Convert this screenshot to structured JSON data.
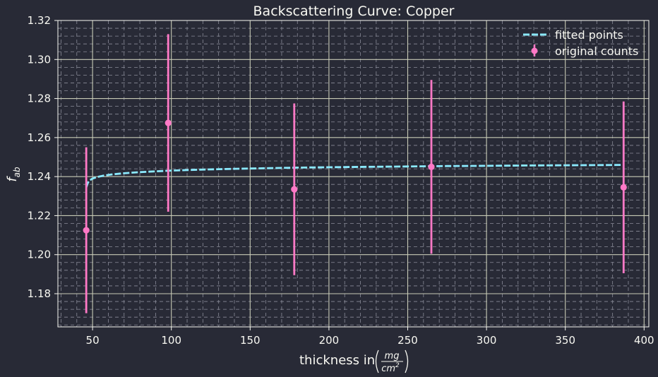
{
  "chart_data": {
    "type": "scatter",
    "title": "Backscattering Curve: Copper",
    "xlabel_prefix": "thickness in",
    "xlabel_num": "mg",
    "xlabel_den": "cm",
    "xlabel_den_exp": "2",
    "ylabel_main": "f",
    "ylabel_sub": "ab",
    "xlim": [
      28,
      403
    ],
    "ylim": [
      1.163,
      1.32
    ],
    "xticks": [
      50,
      100,
      150,
      200,
      250,
      300,
      350,
      400
    ],
    "yticks": [
      1.18,
      1.2,
      1.22,
      1.24,
      1.26,
      1.28,
      1.3,
      1.32
    ],
    "xtick_labels": [
      "50",
      "100",
      "150",
      "200",
      "250",
      "300",
      "350",
      "400"
    ],
    "ytick_labels": [
      "1.18",
      "1.20",
      "1.22",
      "1.24",
      "1.26",
      "1.28",
      "1.30",
      "1.32"
    ],
    "grid": true,
    "legend_position": "top-right",
    "colors": {
      "background": "#282a36",
      "text": "#f8f8f2",
      "fit": "#8be9fd",
      "points": "#ff79c6"
    },
    "series": [
      {
        "name": "fitted points",
        "style": "dashed-line",
        "x": [
          46,
          47,
          48,
          50,
          53,
          57,
          62,
          70,
          80,
          90,
          100,
          120,
          140,
          160,
          180,
          200,
          225,
          250,
          275,
          300,
          325,
          350,
          375,
          387
        ],
        "y": [
          1.2345,
          1.2368,
          1.238,
          1.239,
          1.2398,
          1.2405,
          1.2411,
          1.2417,
          1.2423,
          1.2427,
          1.2431,
          1.2436,
          1.244,
          1.2443,
          1.2446,
          1.2448,
          1.245,
          1.2452,
          1.2454,
          1.2455,
          1.2457,
          1.2458,
          1.2459,
          1.246
        ]
      },
      {
        "name": "original counts",
        "style": "errorbar-points",
        "x": [
          46,
          98,
          178,
          265,
          387
        ],
        "y": [
          1.2125,
          1.2675,
          1.2335,
          1.245,
          1.2345
        ],
        "yerr": [
          0.0425,
          0.0455,
          0.044,
          0.0445,
          0.044
        ]
      }
    ]
  }
}
